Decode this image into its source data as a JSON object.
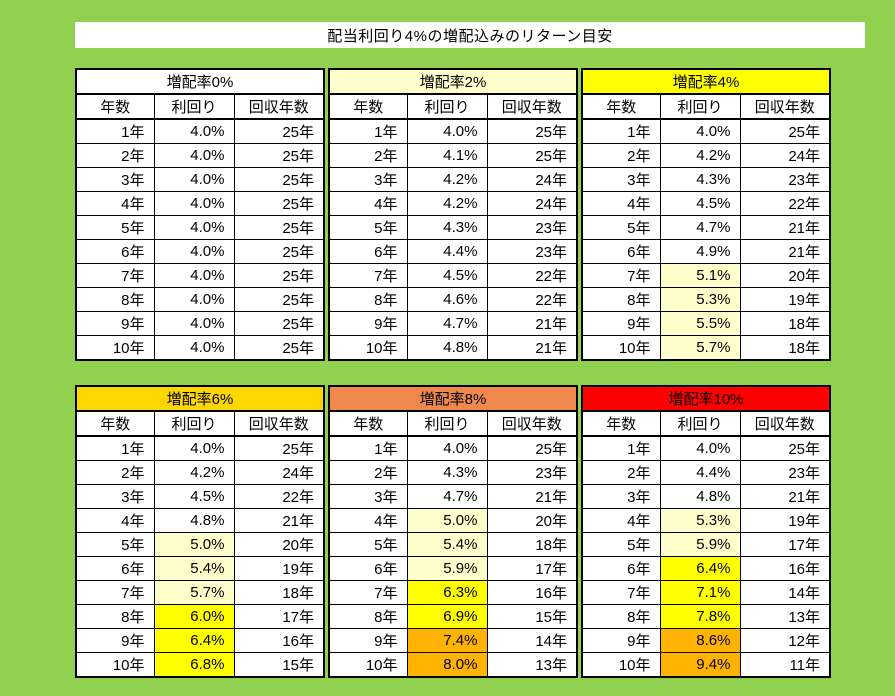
{
  "title": "配当利回り4%の増配込みのリターン目安",
  "columns": [
    "年数",
    "利回り",
    "回収年数"
  ],
  "colors": {
    "page_background": "#92D050",
    "banner_background": "#FFFFFF",
    "table_background": "#FFFFFF",
    "border": "#000000"
  },
  "highlight_colors": {
    "none": "#FFFFFF",
    "pale": "#FFFFCC",
    "yellow": "#FFFF00",
    "orange": "#FFB300"
  },
  "tables": [
    {
      "label": "増配率0%",
      "header_bg": "#FFFFFF",
      "rows": [
        [
          "1年",
          "4.0%",
          "25年",
          "none"
        ],
        [
          "2年",
          "4.0%",
          "25年",
          "none"
        ],
        [
          "3年",
          "4.0%",
          "25年",
          "none"
        ],
        [
          "4年",
          "4.0%",
          "25年",
          "none"
        ],
        [
          "5年",
          "4.0%",
          "25年",
          "none"
        ],
        [
          "6年",
          "4.0%",
          "25年",
          "none"
        ],
        [
          "7年",
          "4.0%",
          "25年",
          "none"
        ],
        [
          "8年",
          "4.0%",
          "25年",
          "none"
        ],
        [
          "9年",
          "4.0%",
          "25年",
          "none"
        ],
        [
          "10年",
          "4.0%",
          "25年",
          "none"
        ]
      ]
    },
    {
      "label": "増配率2%",
      "header_bg": "#FFFFCC",
      "rows": [
        [
          "1年",
          "4.0%",
          "25年",
          "none"
        ],
        [
          "2年",
          "4.1%",
          "25年",
          "none"
        ],
        [
          "3年",
          "4.2%",
          "24年",
          "none"
        ],
        [
          "4年",
          "4.2%",
          "24年",
          "none"
        ],
        [
          "5年",
          "4.3%",
          "23年",
          "none"
        ],
        [
          "6年",
          "4.4%",
          "23年",
          "none"
        ],
        [
          "7年",
          "4.5%",
          "22年",
          "none"
        ],
        [
          "8年",
          "4.6%",
          "22年",
          "none"
        ],
        [
          "9年",
          "4.7%",
          "21年",
          "none"
        ],
        [
          "10年",
          "4.8%",
          "21年",
          "none"
        ]
      ]
    },
    {
      "label": "増配率4%",
      "header_bg": "#FFFF00",
      "rows": [
        [
          "1年",
          "4.0%",
          "25年",
          "none"
        ],
        [
          "2年",
          "4.2%",
          "24年",
          "none"
        ],
        [
          "3年",
          "4.3%",
          "23年",
          "none"
        ],
        [
          "4年",
          "4.5%",
          "22年",
          "none"
        ],
        [
          "5年",
          "4.7%",
          "21年",
          "none"
        ],
        [
          "6年",
          "4.9%",
          "21年",
          "none"
        ],
        [
          "7年",
          "5.1%",
          "20年",
          "pale"
        ],
        [
          "8年",
          "5.3%",
          "19年",
          "pale"
        ],
        [
          "9年",
          "5.5%",
          "18年",
          "pale"
        ],
        [
          "10年",
          "5.7%",
          "18年",
          "pale"
        ]
      ]
    },
    {
      "label": "増配率6%",
      "header_bg": "#FFD700",
      "rows": [
        [
          "1年",
          "4.0%",
          "25年",
          "none"
        ],
        [
          "2年",
          "4.2%",
          "24年",
          "none"
        ],
        [
          "3年",
          "4.5%",
          "22年",
          "none"
        ],
        [
          "4年",
          "4.8%",
          "21年",
          "none"
        ],
        [
          "5年",
          "5.0%",
          "20年",
          "pale"
        ],
        [
          "6年",
          "5.4%",
          "19年",
          "pale"
        ],
        [
          "7年",
          "5.7%",
          "18年",
          "pale"
        ],
        [
          "8年",
          "6.0%",
          "17年",
          "yellow"
        ],
        [
          "9年",
          "6.4%",
          "16年",
          "yellow"
        ],
        [
          "10年",
          "6.8%",
          "15年",
          "yellow"
        ]
      ]
    },
    {
      "label": "増配率8%",
      "header_bg": "#F0874D",
      "rows": [
        [
          "1年",
          "4.0%",
          "25年",
          "none"
        ],
        [
          "2年",
          "4.3%",
          "23年",
          "none"
        ],
        [
          "3年",
          "4.7%",
          "21年",
          "none"
        ],
        [
          "4年",
          "5.0%",
          "20年",
          "pale"
        ],
        [
          "5年",
          "5.4%",
          "18年",
          "pale"
        ],
        [
          "6年",
          "5.9%",
          "17年",
          "pale"
        ],
        [
          "7年",
          "6.3%",
          "16年",
          "yellow"
        ],
        [
          "8年",
          "6.9%",
          "15年",
          "yellow"
        ],
        [
          "9年",
          "7.4%",
          "14年",
          "orange"
        ],
        [
          "10年",
          "8.0%",
          "13年",
          "orange"
        ]
      ]
    },
    {
      "label": "増配率10%",
      "header_bg": "#FF0000",
      "rows": [
        [
          "1年",
          "4.0%",
          "25年",
          "none"
        ],
        [
          "2年",
          "4.4%",
          "23年",
          "none"
        ],
        [
          "3年",
          "4.8%",
          "21年",
          "none"
        ],
        [
          "4年",
          "5.3%",
          "19年",
          "pale"
        ],
        [
          "5年",
          "5.9%",
          "17年",
          "pale"
        ],
        [
          "6年",
          "6.4%",
          "16年",
          "yellow"
        ],
        [
          "7年",
          "7.1%",
          "14年",
          "yellow"
        ],
        [
          "8年",
          "7.8%",
          "13年",
          "yellow"
        ],
        [
          "9年",
          "8.6%",
          "12年",
          "orange"
        ],
        [
          "10年",
          "9.4%",
          "11年",
          "orange"
        ]
      ]
    }
  ]
}
